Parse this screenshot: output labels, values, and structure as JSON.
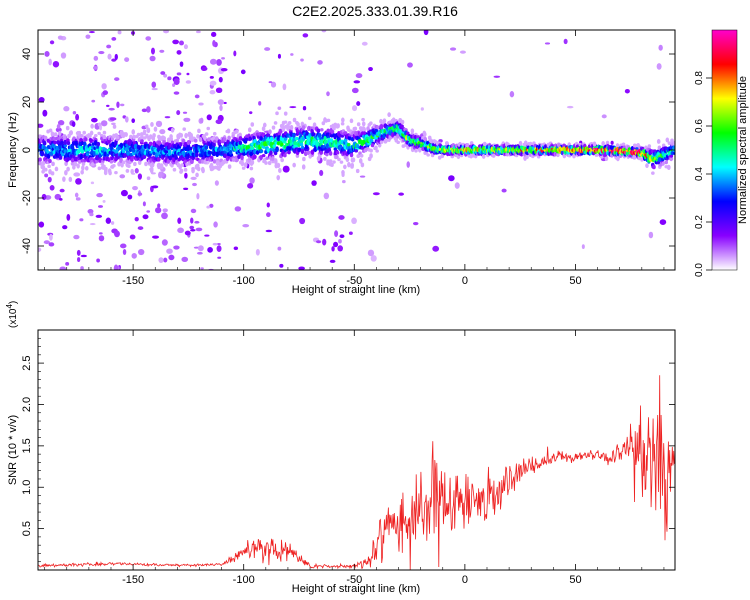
{
  "title": "C2E2.2025.333.01.39.R16",
  "chart_data": [
    {
      "type": "heatmap",
      "name": "spectrogram",
      "xlabel": "Height of straight line (km)",
      "ylabel": "Frequency (Hz)",
      "xlim": [
        -193,
        95
      ],
      "ylim": [
        -50,
        50
      ],
      "xticks": [
        -150,
        -100,
        -50,
        0,
        50
      ],
      "yticks": [
        -40,
        -20,
        0,
        20,
        40
      ],
      "colorbar": {
        "label": "Normalized spectral amplitude",
        "range": [
          0,
          1
        ],
        "ticks": [
          "0.0",
          "0.2",
          "0.4",
          "0.6",
          "0.8"
        ],
        "colors": [
          "#ffffff",
          "#8800ff",
          "#0000ff",
          "#00ffff",
          "#00ff00",
          "#ffff00",
          "#ff0000",
          "#ff00cc"
        ]
      },
      "ridge": {
        "x": [
          -190,
          -170,
          -150,
          -130,
          -110,
          -100,
          -90,
          -80,
          -70,
          -60,
          -50,
          -45,
          -40,
          -35,
          -30,
          -25,
          -20,
          -15,
          -10,
          0,
          10,
          20,
          40,
          60,
          80,
          85,
          90,
          95
        ],
        "freq": [
          0,
          0,
          0,
          -1,
          0,
          1,
          2,
          3,
          4,
          3,
          2,
          4,
          6,
          8,
          9,
          4,
          3,
          1,
          0,
          0,
          0,
          0,
          0,
          0,
          -1,
          -4,
          -2,
          0
        ],
        "spread": [
          8,
          8,
          7,
          7,
          7,
          7,
          8,
          8,
          8,
          8,
          7,
          6,
          5,
          4,
          4,
          3,
          3,
          3,
          2,
          2,
          2,
          2,
          2,
          2,
          2,
          5,
          5,
          3
        ],
        "amplitude": [
          0.35,
          0.4,
          0.38,
          0.35,
          0.35,
          0.45,
          0.5,
          0.5,
          0.5,
          0.45,
          0.45,
          0.5,
          0.5,
          0.5,
          0.55,
          0.6,
          0.6,
          0.6,
          0.65,
          0.7,
          0.7,
          0.7,
          0.75,
          0.85,
          0.9,
          0.6,
          0.5,
          0.5
        ]
      }
    },
    {
      "type": "line",
      "name": "snr",
      "xlabel": "Height of straight line (km)",
      "ylabel": "SNR (10 * v/v)",
      "y_multiplier": "(x10",
      "y_multiplier_exp": "4",
      "y_multiplier_close": ")",
      "xlim": [
        -193,
        95
      ],
      "ylim": [
        0,
        29000
      ],
      "xticks": [
        -150,
        -100,
        -50,
        0,
        50
      ],
      "yticks": [
        5000,
        10000,
        15000,
        20000,
        25000
      ],
      "ytick_labels": [
        "0.5",
        "1.0",
        "1.5",
        "2.0",
        "2.5"
      ],
      "color": "#ee2222",
      "series": [
        {
          "x": [
            -193,
            -170,
            -160,
            -150,
            -140,
            -130,
            -120,
            -110,
            -105,
            -100,
            -95,
            -90,
            -85,
            -80,
            -75,
            -70,
            -60,
            -50,
            -45,
            -42,
            -38,
            -35,
            -30,
            -25,
            -20,
            -15,
            -12,
            -10,
            -5,
            0,
            5,
            10,
            15,
            20,
            25,
            30,
            35,
            40,
            45,
            50,
            55,
            60,
            65,
            70,
            75,
            80,
            85,
            88,
            90,
            92,
            95
          ],
          "y": [
            500,
            700,
            800,
            700,
            600,
            600,
            600,
            700,
            1200,
            2200,
            2800,
            2700,
            2000,
            2500,
            1500,
            500,
            400,
            500,
            800,
            1500,
            3500,
            5000,
            5500,
            6000,
            7000,
            7500,
            9000,
            7000,
            7500,
            8500,
            9000,
            8000,
            9500,
            11000,
            12000,
            12500,
            13000,
            13500,
            13500,
            13500,
            14000,
            14000,
            13500,
            14000,
            14500,
            13000,
            14000,
            13000,
            12000,
            10000,
            14000
          ],
          "noise": [
            150,
            200,
            200,
            150,
            150,
            150,
            150,
            200,
            600,
            1100,
            1400,
            1400,
            1200,
            1300,
            800,
            300,
            250,
            300,
            600,
            1500,
            3000,
            3500,
            3800,
            4200,
            4800,
            5000,
            6000,
            5000,
            3500,
            3000,
            3200,
            3000,
            2500,
            2000,
            1500,
            1200,
            900,
            700,
            700,
            600,
            600,
            700,
            800,
            1200,
            3000,
            5000,
            7500,
            9000,
            9000,
            9000,
            7000
          ]
        }
      ]
    }
  ]
}
